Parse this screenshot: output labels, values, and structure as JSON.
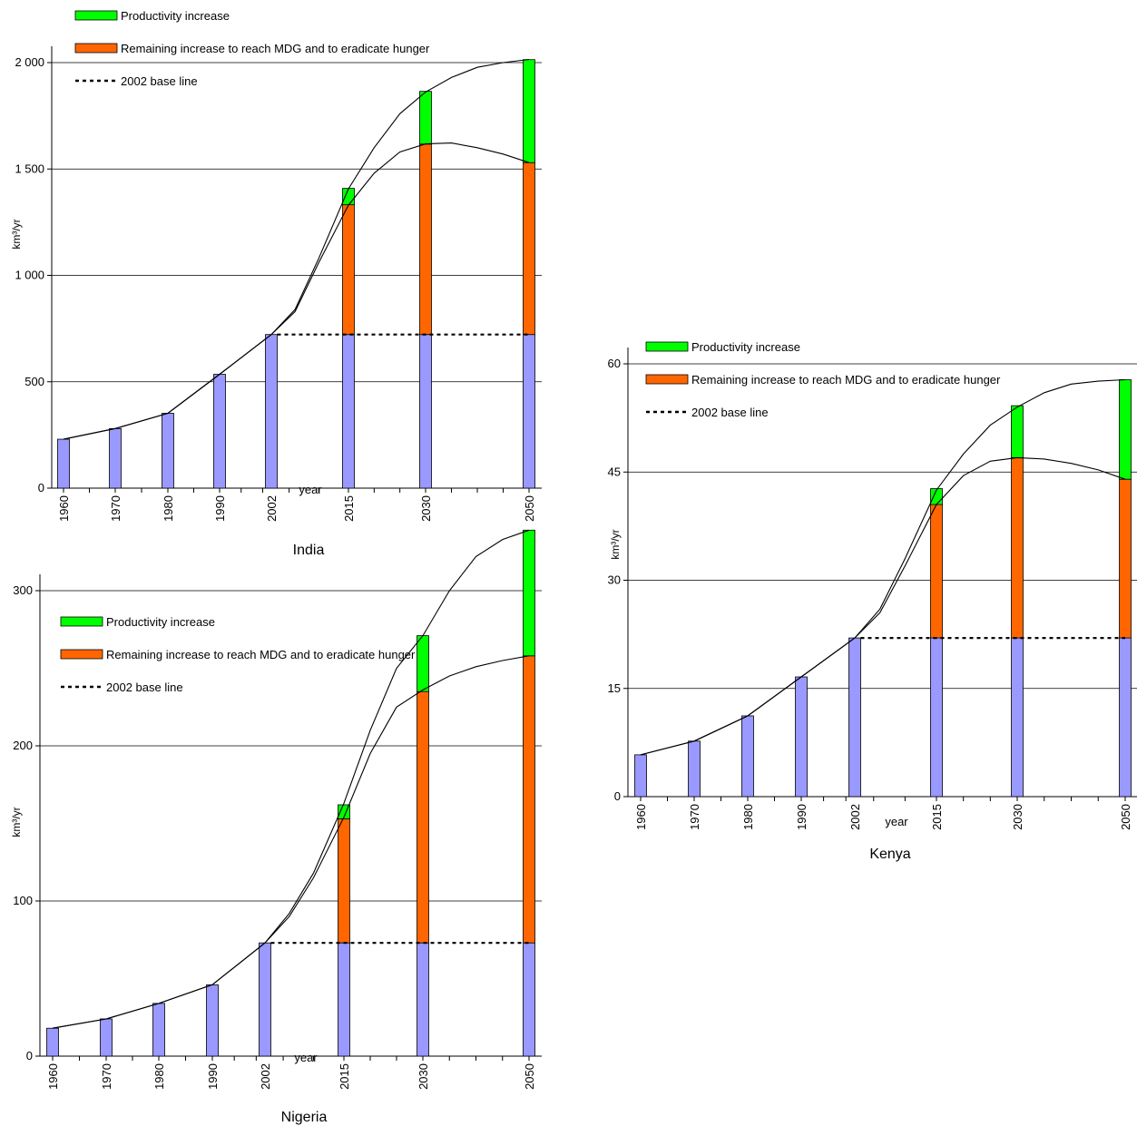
{
  "colors": {
    "base": "#9999ff",
    "remaining": "#ff6600",
    "productivity": "#00ff00",
    "grid": "#000000"
  },
  "legend": {
    "productivity": "Productivity increase",
    "remaining": "Remaining increase to reach MDG and to eradicate hunger",
    "baseline": "2002 base line"
  },
  "chart_data": [
    {
      "type": "bar",
      "stacked": true,
      "title": "India",
      "xlabel": "year",
      "ylabel": "km³/yr",
      "categories": [
        "1960",
        "1970",
        "1980",
        "1990",
        "2002",
        "2015",
        "2030",
        "2050"
      ],
      "ylim": [
        0,
        2000
      ],
      "yticks": [
        0,
        500,
        1000,
        1500,
        2000
      ],
      "ytick_labels": [
        "0",
        "500",
        "1 000",
        "1 500",
        "2 000"
      ],
      "grid": true,
      "legend_position": "top-left",
      "baseline_value": 722,
      "series": [
        {
          "name": "2002 base line",
          "values": [
            230,
            280,
            352,
            535,
            722,
            722,
            722,
            722
          ]
        },
        {
          "name": "Remaining increase to reach MDG and to eradicate hunger",
          "values": [
            0,
            0,
            0,
            0,
            0,
            610,
            895,
            808
          ]
        },
        {
          "name": "Productivity increase",
          "values": [
            0,
            0,
            0,
            0,
            0,
            77,
            248,
            484
          ]
        }
      ]
    },
    {
      "type": "bar",
      "stacked": true,
      "title": "Nigeria",
      "xlabel": "year",
      "ylabel": "km³/yr",
      "categories": [
        "1960",
        "1970",
        "1980",
        "1990",
        "2002",
        "2015",
        "2030",
        "2050"
      ],
      "ylim": [
        0,
        350
      ],
      "yticks": [
        0,
        100,
        200,
        300
      ],
      "ytick_labels": [
        "0",
        "100",
        "200",
        "300"
      ],
      "grid": true,
      "legend_position": "top-left",
      "baseline_value": 73,
      "series": [
        {
          "name": "2002 base line",
          "values": [
            18,
            24,
            34,
            46,
            73,
            73,
            73,
            73
          ]
        },
        {
          "name": "Remaining increase to reach MDG and to eradicate hunger",
          "values": [
            0,
            0,
            0,
            0,
            0,
            80,
            162,
            185
          ]
        },
        {
          "name": "Productivity increase",
          "values": [
            0,
            0,
            0,
            0,
            0,
            9,
            36,
            81
          ]
        }
      ]
    },
    {
      "type": "bar",
      "stacked": true,
      "title": "Kenya",
      "xlabel": "year",
      "ylabel": "km³/yr",
      "categories": [
        "1960",
        "1970",
        "1980",
        "1990",
        "2002",
        "2015",
        "2030",
        "2050"
      ],
      "ylim": [
        0,
        65
      ],
      "yticks": [
        0,
        15,
        30,
        45,
        60
      ],
      "ytick_labels": [
        "0",
        "15",
        "30",
        "45",
        "60"
      ],
      "grid": true,
      "legend_position": "top-left",
      "baseline_value": 22,
      "series": [
        {
          "name": "2002 base line",
          "values": [
            5.8,
            7.7,
            11.2,
            16.6,
            22,
            22,
            22,
            22
          ]
        },
        {
          "name": "Remaining increase to reach MDG and to eradicate hunger",
          "values": [
            0,
            0,
            0,
            0,
            0,
            18.5,
            25,
            22
          ]
        },
        {
          "name": "Productivity increase",
          "values": [
            0,
            0,
            0,
            0,
            0,
            2.2,
            7.2,
            13.8
          ]
        }
      ]
    }
  ]
}
